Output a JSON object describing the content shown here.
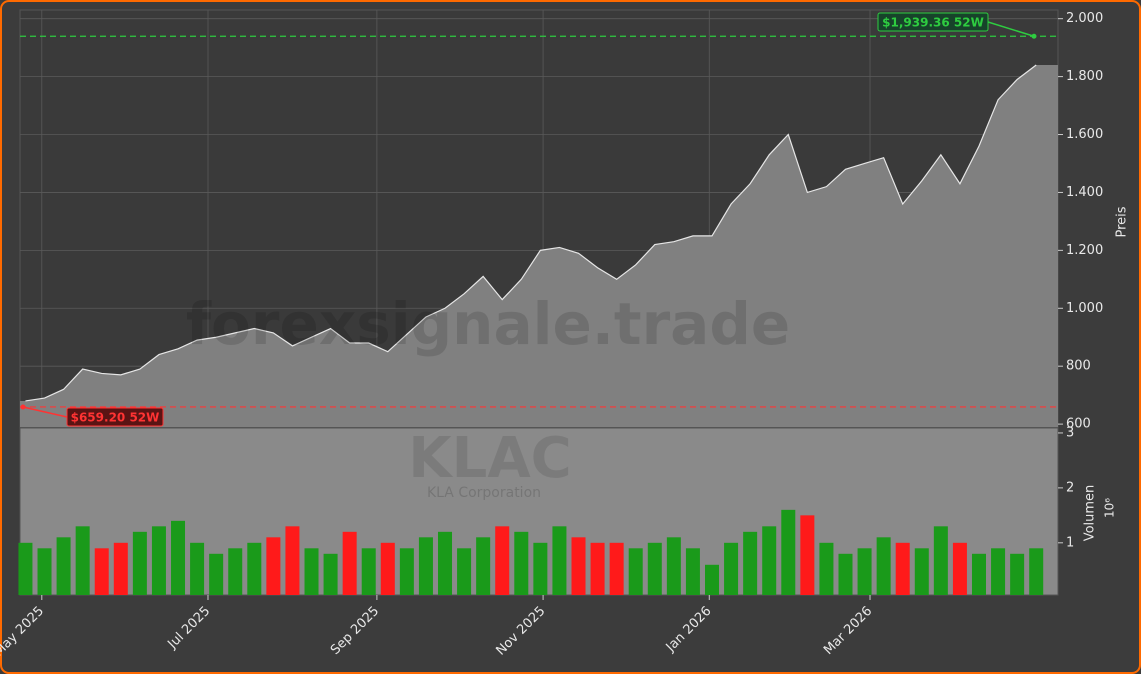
{
  "chart_data": {
    "type": "area",
    "watermark": "forexsignale.trade",
    "symbol": "KLAC",
    "company": "KLA Corporation",
    "ylabel": "Preis",
    "color": "#808080",
    "grid": true,
    "xlim": [
      "2025-04-23",
      "2026-05-09"
    ],
    "xticks": [
      {
        "value": "2025-05-01",
        "label": "May 2025"
      },
      {
        "value": "2025-07-01",
        "label": "Jul 2025"
      },
      {
        "value": "2025-09-01",
        "label": "Sep 2025"
      },
      {
        "value": "2025-11-01",
        "label": "Nov 2025"
      },
      {
        "value": "2026-01-01",
        "label": "Jan 2026"
      },
      {
        "value": "2026-03-01",
        "label": "Mar 2026"
      }
    ],
    "ylim": [
      590,
      2030
    ],
    "yticks": [
      {
        "value": 600,
        "label": "600"
      },
      {
        "value": 800,
        "label": "800"
      },
      {
        "value": 1000,
        "label": "1.000"
      },
      {
        "value": 1200,
        "label": "1.200"
      },
      {
        "value": 1400,
        "label": "1.400"
      },
      {
        "value": 1600,
        "label": "1.600"
      },
      {
        "value": 1800,
        "label": "1.800"
      },
      {
        "value": 2000,
        "label": "2.000"
      }
    ],
    "x": [
      "2025-04-25",
      "2025-05-02",
      "2025-05-09",
      "2025-05-16",
      "2025-05-23",
      "2025-05-30",
      "2025-06-06",
      "2025-06-13",
      "2025-06-20",
      "2025-06-27",
      "2025-07-04",
      "2025-07-11",
      "2025-07-18",
      "2025-07-25",
      "2025-08-01",
      "2025-08-08",
      "2025-08-15",
      "2025-08-22",
      "2025-08-29",
      "2025-09-05",
      "2025-09-12",
      "2025-09-19",
      "2025-09-26",
      "2025-10-03",
      "2025-10-10",
      "2025-10-17",
      "2025-10-24",
      "2025-10-31",
      "2025-11-07",
      "2025-11-14",
      "2025-11-21",
      "2025-11-28",
      "2025-12-05",
      "2025-12-12",
      "2025-12-19",
      "2025-12-26",
      "2026-01-02",
      "2026-01-09",
      "2026-01-16",
      "2026-01-23",
      "2026-01-30",
      "2026-02-06",
      "2026-02-13",
      "2026-02-20",
      "2026-02-27",
      "2026-03-06",
      "2026-03-13",
      "2026-03-20",
      "2026-03-27",
      "2026-04-03",
      "2026-04-10",
      "2026-04-17",
      "2026-04-24",
      "2026-05-01"
    ],
    "values": [
      680,
      690,
      720,
      790,
      775,
      770,
      790,
      840,
      860,
      890,
      900,
      915,
      930,
      915,
      870,
      900,
      930,
      880,
      880,
      850,
      910,
      970,
      1000,
      1050,
      1110,
      1030,
      1100,
      1200,
      1210,
      1190,
      1140,
      1100,
      1150,
      1220,
      1230,
      1250,
      1250,
      1360,
      1430,
      1530,
      1600,
      1400,
      1420,
      1480,
      1500,
      1520,
      1360,
      1440,
      1530,
      1430,
      1560,
      1720,
      1790,
      1840
    ],
    "high": {
      "value": 1939.36,
      "label": "$1,939.36 52W",
      "color": "#2ecc40"
    },
    "low": {
      "value": 659.2,
      "label": "$659.20 52W",
      "color": "#ff3333"
    },
    "volume": {
      "type": "bar",
      "ylabel": "Volumen",
      "scale": "10⁶",
      "up_color": "#1a9a1a",
      "down_color": "#ff1a1a",
      "ylim": [
        0.05,
        3.09
      ],
      "yticks": [
        1,
        2,
        3
      ],
      "values": [
        1.0,
        0.9,
        1.1,
        1.3,
        0.9,
        1.0,
        1.2,
        1.3,
        1.4,
        1.0,
        0.8,
        0.9,
        1.0,
        1.1,
        1.3,
        0.9,
        0.8,
        1.2,
        0.9,
        1.0,
        0.9,
        1.1,
        1.2,
        0.9,
        1.1,
        1.3,
        1.2,
        1.0,
        1.3,
        1.1,
        1.0,
        1.0,
        0.9,
        1.0,
        1.1,
        0.9,
        0.6,
        1.0,
        1.2,
        1.3,
        1.6,
        1.5,
        1.0,
        0.8,
        0.9,
        1.1,
        1.0,
        0.9,
        1.3,
        1.0,
        0.8,
        0.9,
        0.8,
        0.9
      ]
    }
  }
}
